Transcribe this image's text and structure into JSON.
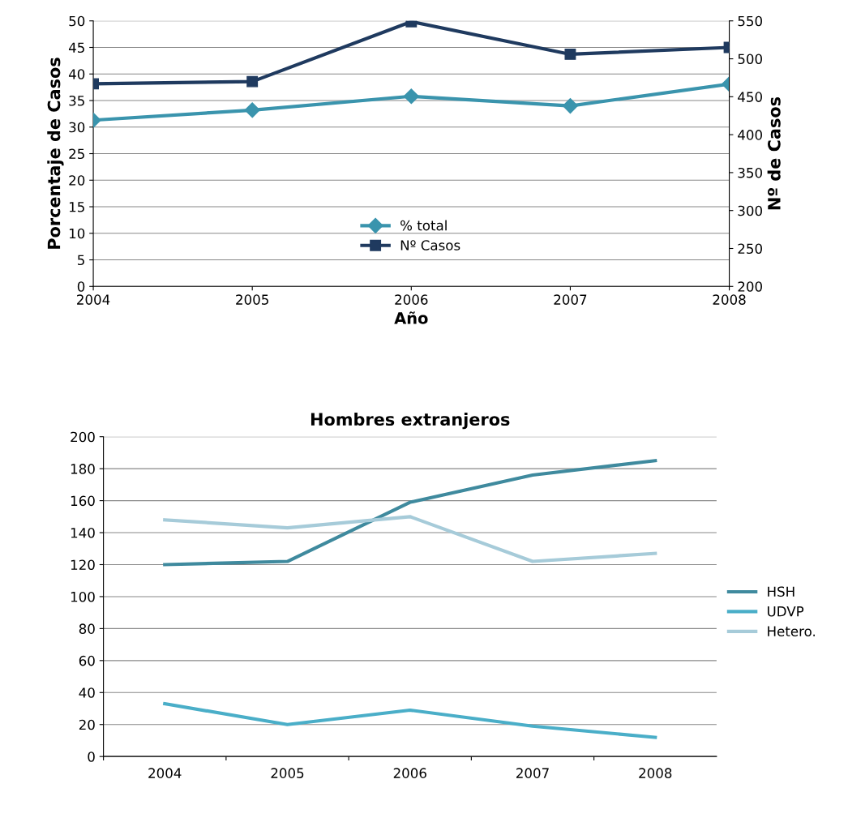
{
  "chart_data": [
    {
      "type": "line",
      "xlabel": "Año",
      "ylabel": "Porcentaje de Casos",
      "y2label": "Nº de Casos",
      "x": [
        2004,
        2005,
        2006,
        2007,
        2008
      ],
      "xlim": [
        2004,
        2008
      ],
      "xticks": [
        2004,
        2005,
        2006,
        2007,
        2008
      ],
      "ylim": [
        0,
        50
      ],
      "yticks": [
        0,
        5,
        10,
        15,
        20,
        25,
        30,
        35,
        40,
        45,
        50
      ],
      "y2lim": [
        200,
        550
      ],
      "y2ticks": [
        200,
        250,
        300,
        350,
        400,
        450,
        500,
        550
      ],
      "grid": "y",
      "legend": "bottom",
      "series": [
        {
          "name": "% total",
          "color": "#3a94ad",
          "marker": "diamond",
          "values": [
            31.3,
            33.2,
            35.8,
            34.0,
            38.1
          ]
        },
        {
          "name": "Nº Casos",
          "color": "#1f3a5f",
          "marker": "square",
          "axis": "y2",
          "values": [
            467,
            470,
            549,
            506,
            515
          ]
        }
      ]
    },
    {
      "type": "line",
      "title": "Hombres extranjeros",
      "categories": [
        "2004",
        "2005",
        "2006",
        "2007",
        "2008"
      ],
      "ylim": [
        0,
        200
      ],
      "yticks": [
        0,
        20,
        40,
        60,
        80,
        100,
        120,
        140,
        160,
        180,
        200
      ],
      "grid": "y",
      "legend": "right",
      "series": [
        {
          "name": "HSH",
          "color": "#3f8a9e",
          "values": [
            120,
            122,
            159,
            176,
            185
          ]
        },
        {
          "name": "UDVP",
          "color": "#4aaec8",
          "values": [
            33,
            20,
            29,
            19,
            12
          ]
        },
        {
          "name": "Hetero.",
          "color": "#a6cbd9",
          "values": [
            148,
            143,
            150,
            122,
            127
          ]
        }
      ]
    }
  ]
}
